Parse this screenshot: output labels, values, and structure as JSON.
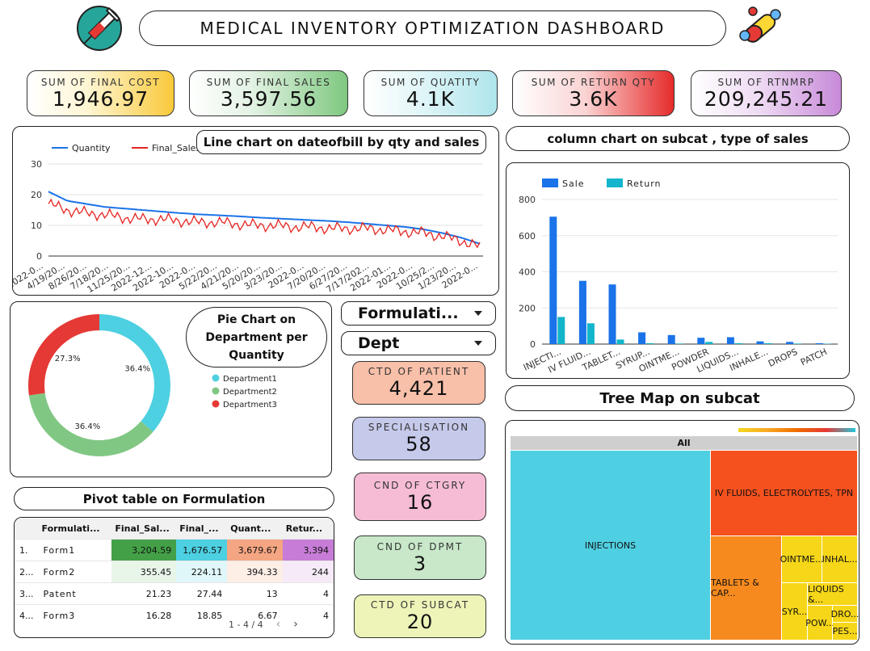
{
  "header": {
    "title": "MEDICAL INVENTORY OPTIMIZATION DASHBOARD"
  },
  "kpis": [
    {
      "label": "Sum of Final Cost",
      "value": "1,946.97"
    },
    {
      "label": "Sum of Final sales",
      "value": "3,597.56"
    },
    {
      "label": "Sum of Quatity",
      "value": "4.1K"
    },
    {
      "label": "Sum of return qty",
      "value": "3.6K"
    },
    {
      "label": "Sum of rtnmrp",
      "value": "209,245.21"
    }
  ],
  "line_chart": {
    "title": "Line chart on dateofbill by qty and sales",
    "legend": [
      "Quantity",
      "Final_Sales"
    ],
    "y_ticks": [
      "30",
      "20",
      "10",
      "0"
    ],
    "x_ticks": [
      "2022-0...",
      "4/19/20...",
      "8/26/20...",
      "7/18/20...",
      "11/25/20...",
      "2022-12...",
      "2022-10...",
      "2022-0...",
      "5/22/20...",
      "4/21/20...",
      "5/20/20...",
      "3/23/20...",
      "2022-0...",
      "7/20/20...",
      "6/27/20...",
      "7/17/202...",
      "2022-01...",
      "2022-0...",
      "10/25/2...",
      "1/23/20...",
      "2022-0..."
    ]
  },
  "column_chart": {
    "title": "column chart on subcat , type of sales",
    "legend": [
      "Sale",
      "Return"
    ],
    "y_ticks": [
      "800",
      "600",
      "400",
      "200",
      "0"
    ]
  },
  "pie_chart": {
    "title": "Pie Chart on Department per Quantity",
    "legend": [
      "Department1",
      "Department2",
      "Department3"
    ],
    "labels": [
      "36.4%",
      "36.4%",
      "27.3%"
    ]
  },
  "filters": {
    "formulation": "Formulati...",
    "dept": "Dept"
  },
  "cards": [
    {
      "label": "CTD of patient",
      "value": "4,421"
    },
    {
      "label": "specialisation",
      "value": "58"
    },
    {
      "label": "CND of CTGRY",
      "value": "16"
    },
    {
      "label": "CND of DPMT",
      "value": "3"
    },
    {
      "label": "CTD of subcat",
      "value": "20"
    }
  ],
  "pivot": {
    "title": "Pivot table on Formulation",
    "headers": [
      "Formulati...",
      "Final_Sal...",
      "Final_...",
      "Quant...",
      "Retur..."
    ],
    "rows": [
      {
        "idx": "1.",
        "name": "Form1",
        "c1": "3,204.59",
        "c2": "1,676.57",
        "c3": "3,679.67",
        "c4": "3,394"
      },
      {
        "idx": "2...",
        "name": "Form2",
        "c1": "355.45",
        "c2": "224.11",
        "c3": "394.33",
        "c4": "244"
      },
      {
        "idx": "3...",
        "name": "Patent",
        "c1": "21.23",
        "c2": "27.44",
        "c3": "13",
        "c4": "4"
      },
      {
        "idx": "4...",
        "name": "Form3",
        "c1": "16.28",
        "c2": "18.85",
        "c3": "6.67",
        "c4": "4"
      }
    ],
    "pagination": "1 - 4 / 4"
  },
  "treemap": {
    "title": "Tree Map on subcat",
    "root": "All",
    "labels": [
      "INJECTIONS",
      "IV FLUIDS, ELECTROLYTES, TPN",
      "TABLETS & CAP...",
      "OINTME...",
      "INHAL...",
      "LIQUIDS &...",
      "SYR...",
      "DRO...",
      "POW...",
      "PES..."
    ]
  },
  "colors": {
    "sale": "#1a73e8",
    "return": "#12b5cb",
    "quantity_line": "#1a73e8",
    "sales_line": "#e52521",
    "pie1": "#4dd0e1",
    "pie2": "#81c784",
    "pie3": "#e53935"
  },
  "chart_data": [
    {
      "type": "line",
      "title": "Line chart on dateofbill by qty and sales",
      "ylim": [
        0,
        30
      ],
      "series": [
        {
          "name": "Quantity",
          "values": [
            21,
            18,
            17,
            16,
            15.5,
            15,
            14.5,
            14,
            13.6,
            13.3,
            13,
            12.6,
            12.3,
            12,
            11.7,
            11.4,
            11,
            10.5,
            10,
            9.5,
            8.7,
            7.5,
            6,
            4
          ]
        },
        {
          "name": "Final_Sales",
          "values": [
            17,
            15,
            14,
            13.5,
            12.5,
            12,
            12,
            11.5,
            11,
            11,
            10.5,
            10,
            10,
            9.5,
            9.5,
            9,
            9,
            9,
            8.5,
            8,
            7.5,
            6.5,
            5,
            3
          ]
        }
      ]
    },
    {
      "type": "bar",
      "title": "column chart on subcat , type of sales",
      "categories": [
        "INJECTI...",
        "IV FLUID...",
        "TABLET...",
        "SYRUP...",
        "OINTME...",
        "POWDER",
        "LIQUIDS...",
        "INHALE...",
        "DROPS",
        "PATCH"
      ],
      "ylim": [
        0,
        800
      ],
      "series": [
        {
          "name": "Sale",
          "values": [
            705,
            350,
            330,
            65,
            50,
            35,
            38,
            15,
            12,
            5
          ]
        },
        {
          "name": "Return",
          "values": [
            150,
            115,
            25,
            5,
            3,
            12,
            5,
            5,
            3,
            2
          ]
        }
      ]
    },
    {
      "type": "pie",
      "title": "Pie Chart on Department per Quantity",
      "categories": [
        "Department1",
        "Department2",
        "Department3"
      ],
      "values": [
        36.4,
        36.4,
        27.3
      ]
    }
  ]
}
